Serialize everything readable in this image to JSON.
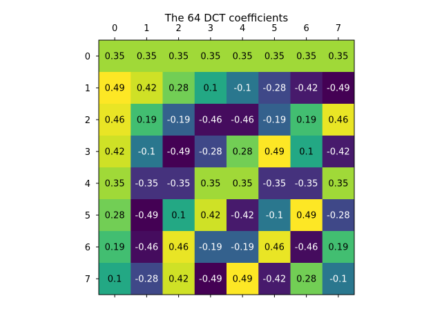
{
  "chart_data": {
    "type": "heatmap",
    "title": "The 64 DCT coefficients",
    "xlabel": "",
    "ylabel": "",
    "x_ticks": [
      "0",
      "1",
      "2",
      "3",
      "4",
      "5",
      "6",
      "7"
    ],
    "y_ticks": [
      "0",
      "1",
      "2",
      "3",
      "4",
      "5",
      "6",
      "7"
    ],
    "x_axis_position": "top",
    "colormap": "viridis",
    "value_range": [
      -0.49,
      0.49
    ],
    "grid": false,
    "legend": "none",
    "values": [
      [
        0.35,
        0.35,
        0.35,
        0.35,
        0.35,
        0.35,
        0.35,
        0.35
      ],
      [
        0.49,
        0.42,
        0.28,
        0.1,
        -0.1,
        -0.28,
        -0.42,
        -0.49
      ],
      [
        0.46,
        0.19,
        -0.19,
        -0.46,
        -0.46,
        -0.19,
        0.19,
        0.46
      ],
      [
        0.42,
        -0.1,
        -0.49,
        -0.28,
        0.28,
        0.49,
        0.1,
        -0.42
      ],
      [
        0.35,
        -0.35,
        -0.35,
        0.35,
        0.35,
        -0.35,
        -0.35,
        0.35
      ],
      [
        0.28,
        -0.49,
        0.1,
        0.42,
        -0.42,
        -0.1,
        0.49,
        -0.28
      ],
      [
        0.19,
        -0.46,
        0.46,
        -0.19,
        -0.19,
        0.46,
        -0.46,
        0.19
      ],
      [
        0.1,
        -0.28,
        0.42,
        -0.49,
        0.49,
        -0.42,
        0.28,
        -0.1
      ]
    ]
  }
}
